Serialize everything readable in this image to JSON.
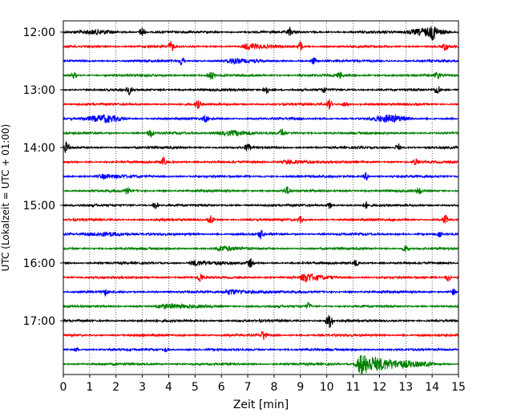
{
  "chart_data": {
    "type": "line",
    "title": "",
    "xlabel": "Zeit  [min]",
    "ylabel": "UTC (Lokalzeit = UTC + 01:00)",
    "xlim": [
      0,
      15
    ],
    "x_ticks": [
      0,
      1,
      2,
      3,
      4,
      5,
      6,
      7,
      8,
      9,
      10,
      11,
      12,
      13,
      14,
      15
    ],
    "y_ticks": [
      "12:00",
      "13:00",
      "14:00",
      "15:00",
      "16:00",
      "17:00"
    ],
    "x_grid": "dotted",
    "trace_colors": [
      "#000000",
      "#ff0000",
      "#0000ff",
      "#008000"
    ],
    "traces_per_hour": 4,
    "minutes_per_trace": 15,
    "series": [
      {
        "start": "12:00",
        "color": "black",
        "events": [
          {
            "t": 1.3,
            "amp": 0.6,
            "dur": 1.0
          },
          {
            "t": 3.0,
            "amp": 1.8,
            "dur": 0.15
          },
          {
            "t": 8.6,
            "amp": 1.2,
            "dur": 0.15
          },
          {
            "t": 13.8,
            "amp": 1.3,
            "dur": 1.0
          },
          {
            "t": 14.05,
            "amp": 1.6,
            "dur": 0.2
          }
        ]
      },
      {
        "start": "12:15",
        "color": "red",
        "events": [
          {
            "t": 4.1,
            "amp": 1.6,
            "dur": 0.15
          },
          {
            "t": 7.0,
            "amp": 0.9,
            "dur": 1.3
          },
          {
            "t": 9.0,
            "amp": 1.6,
            "dur": 0.15
          },
          {
            "t": 14.5,
            "amp": 1.3,
            "dur": 0.15
          }
        ]
      },
      {
        "start": "12:30",
        "color": "blue",
        "events": [
          {
            "t": 4.5,
            "amp": 1.6,
            "dur": 0.15
          },
          {
            "t": 6.4,
            "amp": 0.8,
            "dur": 1.2
          },
          {
            "t": 9.5,
            "amp": 1.1,
            "dur": 0.15
          }
        ]
      },
      {
        "start": "12:45",
        "color": "green",
        "events": [
          {
            "t": 0.4,
            "amp": 1.0,
            "dur": 0.15
          },
          {
            "t": 5.6,
            "amp": 1.3,
            "dur": 0.2
          },
          {
            "t": 10.5,
            "amp": 1.0,
            "dur": 0.15
          },
          {
            "t": 14.2,
            "amp": 1.1,
            "dur": 0.15
          }
        ]
      },
      {
        "start": "13:00",
        "color": "black",
        "events": [
          {
            "t": 2.5,
            "amp": 1.3,
            "dur": 0.15
          },
          {
            "t": 7.7,
            "amp": 1.5,
            "dur": 0.15
          },
          {
            "t": 9.9,
            "amp": 1.0,
            "dur": 0.15
          },
          {
            "t": 14.2,
            "amp": 1.6,
            "dur": 0.15
          }
        ]
      },
      {
        "start": "13:15",
        "color": "red",
        "events": [
          {
            "t": 5.1,
            "amp": 1.3,
            "dur": 0.15
          },
          {
            "t": 10.1,
            "amp": 1.5,
            "dur": 0.15
          },
          {
            "t": 10.7,
            "amp": 1.0,
            "dur": 0.15
          }
        ]
      },
      {
        "start": "13:30",
        "color": "blue",
        "events": [
          {
            "t": 1.6,
            "amp": 1.1,
            "dur": 1.0
          },
          {
            "t": 5.4,
            "amp": 1.2,
            "dur": 0.15
          },
          {
            "t": 12.4,
            "amp": 1.1,
            "dur": 0.9
          }
        ]
      },
      {
        "start": "13:45",
        "color": "green",
        "events": [
          {
            "t": 3.3,
            "amp": 1.4,
            "dur": 0.15
          },
          {
            "t": 6.5,
            "amp": 0.8,
            "dur": 1.0
          },
          {
            "t": 8.3,
            "amp": 1.3,
            "dur": 0.15
          }
        ]
      },
      {
        "start": "14:00",
        "color": "black",
        "events": [
          {
            "t": 0.1,
            "amp": 1.5,
            "dur": 0.2
          },
          {
            "t": 7.0,
            "amp": 1.6,
            "dur": 0.15
          },
          {
            "t": 12.7,
            "amp": 1.3,
            "dur": 0.15
          }
        ]
      },
      {
        "start": "14:15",
        "color": "red",
        "events": [
          {
            "t": 3.8,
            "amp": 1.3,
            "dur": 0.15
          },
          {
            "t": 8.5,
            "amp": 0.7,
            "dur": 1.5
          },
          {
            "t": 13.4,
            "amp": 1.0,
            "dur": 0.15
          }
        ]
      },
      {
        "start": "14:30",
        "color": "blue",
        "events": [
          {
            "t": 1.5,
            "amp": 0.6,
            "dur": 1.5
          },
          {
            "t": 11.5,
            "amp": 1.3,
            "dur": 0.15
          }
        ]
      },
      {
        "start": "14:45",
        "color": "green",
        "events": [
          {
            "t": 2.4,
            "amp": 1.1,
            "dur": 0.15
          },
          {
            "t": 8.5,
            "amp": 1.2,
            "dur": 0.2
          },
          {
            "t": 13.5,
            "amp": 1.2,
            "dur": 0.15
          }
        ]
      },
      {
        "start": "15:00",
        "color": "black",
        "events": [
          {
            "t": 3.5,
            "amp": 1.3,
            "dur": 0.15
          },
          {
            "t": 10.1,
            "amp": 1.2,
            "dur": 0.15
          },
          {
            "t": 11.5,
            "amp": 1.0,
            "dur": 0.15
          }
        ]
      },
      {
        "start": "15:15",
        "color": "red",
        "events": [
          {
            "t": 5.6,
            "amp": 1.3,
            "dur": 0.15
          },
          {
            "t": 9.0,
            "amp": 1.0,
            "dur": 0.15
          },
          {
            "t": 14.5,
            "amp": 1.4,
            "dur": 0.15
          }
        ]
      },
      {
        "start": "15:30",
        "color": "blue",
        "events": [
          {
            "t": 1.7,
            "amp": 0.7,
            "dur": 1.0
          },
          {
            "t": 7.5,
            "amp": 1.3,
            "dur": 0.15
          },
          {
            "t": 14.3,
            "amp": 1.0,
            "dur": 0.15
          }
        ]
      },
      {
        "start": "15:45",
        "color": "green",
        "events": [
          {
            "t": 6.0,
            "amp": 0.8,
            "dur": 1.2
          },
          {
            "t": 13.0,
            "amp": 1.3,
            "dur": 0.15
          }
        ]
      },
      {
        "start": "16:00",
        "color": "black",
        "events": [
          {
            "t": 5.0,
            "amp": 0.8,
            "dur": 1.5
          },
          {
            "t": 7.1,
            "amp": 1.5,
            "dur": 0.15
          },
          {
            "t": 11.1,
            "amp": 1.0,
            "dur": 0.15
          }
        ]
      },
      {
        "start": "16:15",
        "color": "red",
        "events": [
          {
            "t": 5.2,
            "amp": 1.5,
            "dur": 0.15
          },
          {
            "t": 9.2,
            "amp": 1.3,
            "dur": 1.2
          },
          {
            "t": 14.6,
            "amp": 1.2,
            "dur": 0.15
          }
        ]
      },
      {
        "start": "16:30",
        "color": "blue",
        "events": [
          {
            "t": 1.6,
            "amp": 1.0,
            "dur": 0.15
          },
          {
            "t": 6.3,
            "amp": 0.8,
            "dur": 2.0
          },
          {
            "t": 14.8,
            "amp": 1.0,
            "dur": 0.15
          }
        ]
      },
      {
        "start": "16:45",
        "color": "green",
        "events": [
          {
            "t": 3.8,
            "amp": 0.6,
            "dur": 2.5
          },
          {
            "t": 9.3,
            "amp": 1.1,
            "dur": 0.15
          }
        ]
      },
      {
        "start": "17:00",
        "color": "black",
        "events": [
          {
            "t": 10.1,
            "amp": 2.2,
            "dur": 0.2
          }
        ]
      },
      {
        "start": "17:15",
        "color": "red",
        "events": [
          {
            "t": 7.6,
            "amp": 1.6,
            "dur": 0.15
          }
        ]
      },
      {
        "start": "17:30",
        "color": "blue",
        "events": [
          {
            "t": 0.5,
            "amp": 0.6,
            "dur": 0.15
          },
          {
            "t": 3.9,
            "amp": 0.6,
            "dur": 0.15
          }
        ]
      },
      {
        "start": "17:45",
        "color": "green",
        "events": [
          {
            "t": 11.3,
            "amp": 3.2,
            "dur": 2.8
          }
        ]
      }
    ]
  }
}
